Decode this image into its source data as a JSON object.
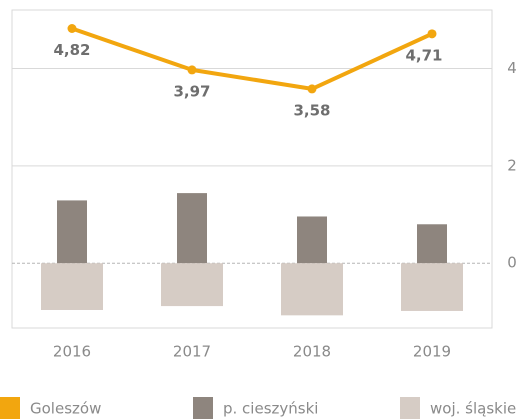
{
  "chart_data": {
    "type": "bar",
    "categories": [
      "2016",
      "2017",
      "2018",
      "2019"
    ],
    "series": [
      {
        "name": "Goleszów",
        "type": "line",
        "color": "#f2a60f",
        "values": [
          4.82,
          3.97,
          3.58,
          4.71
        ],
        "value_labels": [
          "4,82",
          "3,97",
          "3,58",
          "4,71"
        ]
      },
      {
        "name": "p. cieszyński",
        "type": "bar",
        "color": "#8e857e",
        "values": [
          1.29,
          1.44,
          0.96,
          0.8
        ]
      },
      {
        "name": "woj. śląskie",
        "type": "bar",
        "color": "#d6ccc5",
        "values": [
          -0.96,
          -0.88,
          -1.07,
          -0.98
        ]
      }
    ],
    "ylim": [
      -1.33,
      5.2
    ],
    "yticks": [
      0,
      2,
      4
    ],
    "grid": true,
    "legend": "bottom"
  }
}
